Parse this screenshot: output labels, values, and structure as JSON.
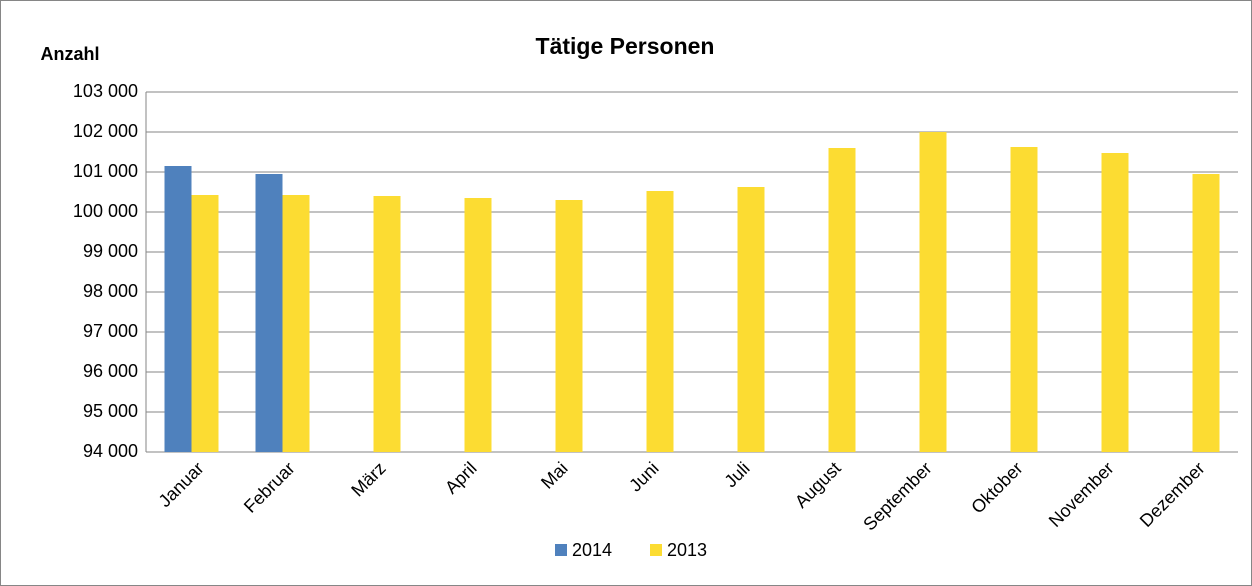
{
  "chart_data": {
    "type": "bar",
    "title": "Tätige Personen",
    "y_label": "Anzahl",
    "categories": [
      "Januar",
      "Februar",
      "März",
      "April",
      "Mai",
      "Juni",
      "Juli",
      "August",
      "September",
      "Oktober",
      "November",
      "Dezember"
    ],
    "series": [
      {
        "name": "2014",
        "color": "#4f81bd",
        "values": [
          101150,
          100950,
          null,
          null,
          null,
          null,
          null,
          null,
          null,
          null,
          null,
          null
        ]
      },
      {
        "name": "2013",
        "color": "#fcdc32",
        "values": [
          100425,
          100425,
          100400,
          100350,
          100300,
          100525,
          100625,
          101600,
          102000,
          101625,
          101475,
          100950
        ]
      }
    ],
    "ylim": [
      94000,
      103000
    ],
    "yticks": [
      {
        "value": 94000,
        "label": "94 000"
      },
      {
        "value": 95000,
        "label": "95 000"
      },
      {
        "value": 96000,
        "label": "96 000"
      },
      {
        "value": 97000,
        "label": "97 000"
      },
      {
        "value": 98000,
        "label": "98 000"
      },
      {
        "value": 99000,
        "label": "99 000"
      },
      {
        "value": 100000,
        "label": "100 000"
      },
      {
        "value": 101000,
        "label": "101 000"
      },
      {
        "value": 102000,
        "label": "102 000"
      },
      {
        "value": 103000,
        "label": "103 000"
      }
    ],
    "grid": true,
    "legend": "bottom"
  }
}
